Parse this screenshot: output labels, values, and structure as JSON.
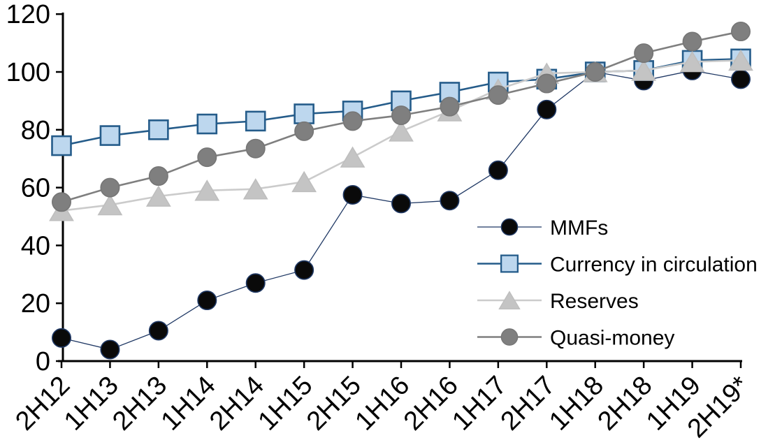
{
  "chart_data": {
    "type": "line",
    "title": "",
    "xlabel": "",
    "ylabel": "",
    "categories": [
      "2H12",
      "1H13",
      "2H13",
      "1H14",
      "2H14",
      "1H15",
      "2H15",
      "1H16",
      "2H16",
      "1H17",
      "2H17",
      "1H18",
      "2H18",
      "1H19",
      "2H19*"
    ],
    "series": [
      {
        "name": "MMFs",
        "marker": "circle",
        "line_color": "#1F3864",
        "marker_fill": "#0a0a0a",
        "marker_edge": "#1F3864",
        "line_width": 1.3,
        "values": [
          8,
          4,
          10.5,
          21,
          27,
          31.5,
          57.5,
          54.5,
          55.5,
          66,
          87,
          100,
          97,
          100.5,
          97.5
        ]
      },
      {
        "name": "Currency in circulation",
        "marker": "square",
        "line_color": "#255C8A",
        "marker_fill": "#BDD7EE",
        "marker_edge": "#255C8A",
        "line_width": 2.6,
        "values": [
          74.5,
          78,
          80,
          82,
          83,
          85.5,
          86.5,
          90,
          93,
          96.5,
          97.5,
          100,
          100.5,
          104,
          104.5
        ]
      },
      {
        "name": "Reserves",
        "marker": "triangle",
        "line_color": "#CBCBCB",
        "marker_fill": "#C4C4C4",
        "marker_edge": "#BEBEBE",
        "line_width": 2.6,
        "values": [
          52,
          54,
          57,
          59,
          59.5,
          62,
          70.5,
          79.5,
          86.5,
          94,
          99.5,
          100,
          100.5,
          103.5,
          104
        ]
      },
      {
        "name": "Quasi-money",
        "marker": "circle",
        "line_color": "#7F7F7F",
        "marker_fill": "#7F7F7F",
        "marker_edge": "#767676",
        "line_width": 2.6,
        "values": [
          55,
          60,
          64,
          70.5,
          73.5,
          79.5,
          83,
          85,
          88,
          92,
          96,
          100,
          106.5,
          110.5,
          114
        ]
      }
    ],
    "ylim": [
      0,
      120
    ],
    "yticks": [
      0,
      20,
      40,
      60,
      80,
      100,
      120
    ],
    "x_tick_rotation_deg": -45,
    "grid": false,
    "legend_position": "inside-right-middle",
    "axis_color": "#000000"
  }
}
